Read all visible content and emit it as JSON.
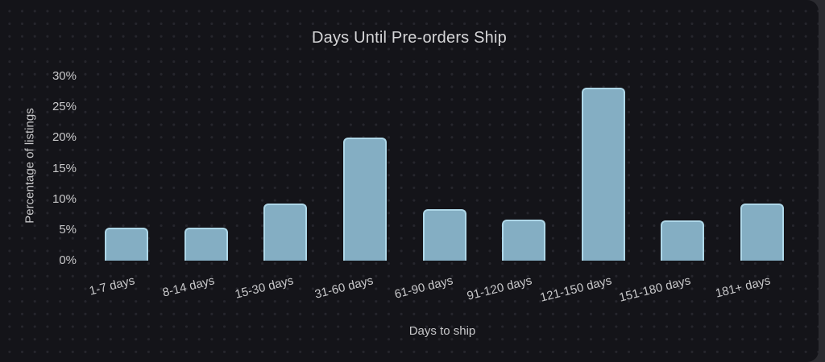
{
  "colors": {
    "page_background": "#2b2b30",
    "card_background": "#141419",
    "dot_grid": "#26262d",
    "bar_fill": "#84aec3",
    "bar_border": "#aed7e8",
    "text": "#c8c8ca",
    "title_text": "#d6d6d8"
  },
  "chart_data": {
    "type": "bar",
    "title": "Days Until Pre-orders Ship",
    "xlabel": "Days to ship",
    "ylabel": "Percentage of listings",
    "categories": [
      "1-7 days",
      "8-14 days",
      "15-30 days",
      "31-60 days",
      "61-90 days",
      "91-120 days",
      "121-150 days",
      "151-180 days",
      "181+ days"
    ],
    "values": [
      5.4,
      5.4,
      9.3,
      20.0,
      8.4,
      6.7,
      28.2,
      6.6,
      9.3
    ],
    "y_tick_labels": [
      "0%",
      "5%",
      "10%",
      "15%",
      "20%",
      "25%",
      "30%"
    ],
    "y_tick_values": [
      0,
      5,
      10,
      15,
      20,
      25,
      30
    ],
    "ylim": [
      0,
      30
    ],
    "grid": false,
    "legend": false,
    "x_label_rotation_deg": -14
  }
}
